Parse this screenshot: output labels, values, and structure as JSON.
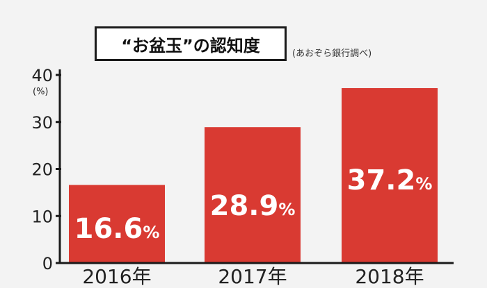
{
  "chart_data": {
    "type": "bar",
    "title": "“お盆玉”の認知度",
    "source_note": "(あおぞら銀行調べ)",
    "unit_label": "(%)",
    "categories": [
      "2016年",
      "2017年",
      "2018年"
    ],
    "values": [
      16.6,
      28.9,
      37.2
    ],
    "value_labels": [
      "16.6",
      "28.9",
      "37.2"
    ],
    "value_suffix": "%",
    "ylim": [
      0,
      40
    ],
    "yticks": [
      "0",
      "10",
      "20",
      "30",
      "40"
    ],
    "bar_color": "#d93a32",
    "grid": false
  }
}
